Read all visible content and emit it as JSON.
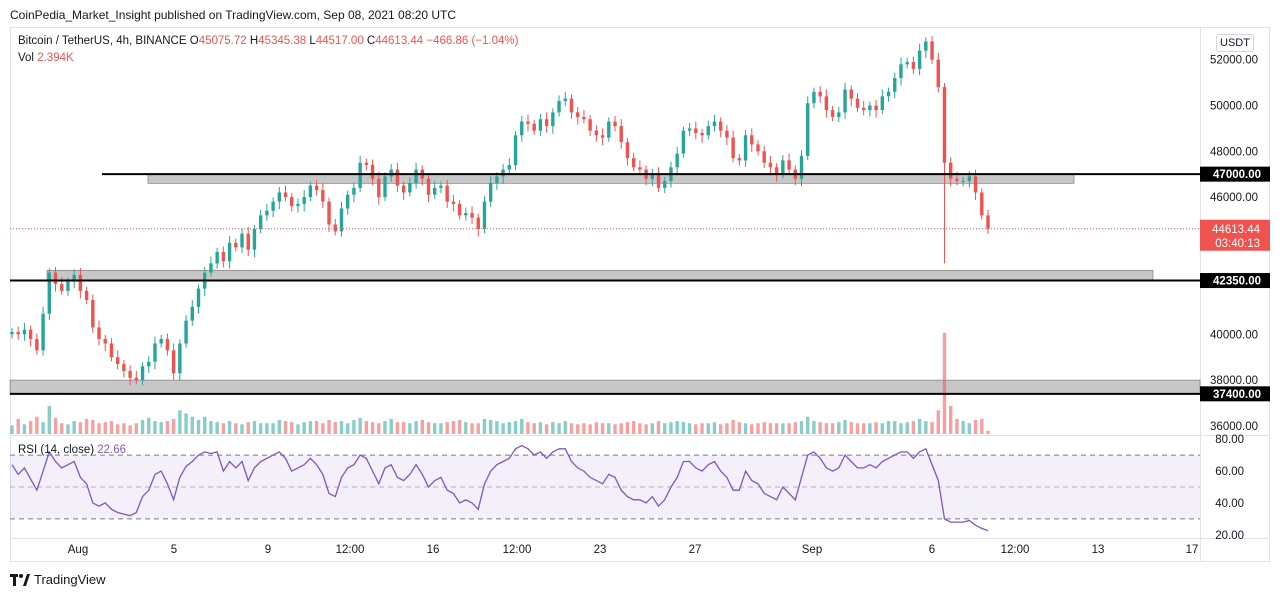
{
  "publisher": "CoinPedia_Market_Insight published on TradingView.com, Sep 08, 2021 08:20 UTC",
  "brand": "TradingView",
  "chart_data": {
    "type": "candlestick",
    "symbol_line": "Bitcoin / TetherUS, 4h, BINANCE",
    "ohlc": {
      "o_label": "O",
      "o": "45075.72",
      "h_label": "H",
      "h": "45345.38",
      "l_label": "L",
      "l": "44517.00",
      "c_label": "C",
      "c": "44613.44",
      "change": "−466.86 (−1.04%)"
    },
    "volume": {
      "label": "Vol",
      "value": "2.394K"
    },
    "currency": "USDT",
    "y_ticks": [
      "52000.00",
      "50000.00",
      "48000.00",
      "46000.00",
      "40000.00",
      "38000.00",
      "36000.00"
    ],
    "y_tick_values": [
      52000,
      50000,
      48000,
      46000,
      40000,
      38000,
      36000
    ],
    "ylim": [
      35600,
      53300
    ],
    "x_ticks": [
      "Aug",
      "5",
      "9",
      "12:00",
      "16",
      "12:00",
      "23",
      "27",
      "Sep",
      "6",
      "12:00",
      "13",
      "17"
    ],
    "levels": [
      {
        "label": "47000.00",
        "value": 47000
      },
      {
        "label": "42350.00",
        "value": 42350
      },
      {
        "label": "37400.00",
        "value": 37400
      }
    ],
    "zones": [
      {
        "from": 46600,
        "to": 47000
      },
      {
        "from": 42350,
        "to": 42800
      },
      {
        "from": 37400,
        "to": 38000
      }
    ],
    "last_price": {
      "label": "44613.44",
      "countdown": "03:40:13",
      "value": 44613
    },
    "closes": [
      40100,
      40000,
      40200,
      39800,
      39300,
      40900,
      42700,
      42200,
      41900,
      42300,
      42600,
      41900,
      41500,
      40300,
      39800,
      39600,
      39000,
      38700,
      38400,
      38100,
      38000,
      38600,
      38800,
      39600,
      39800,
      39300,
      38300,
      39600,
      40600,
      41200,
      42000,
      42700,
      43100,
      43600,
      43200,
      44000,
      43800,
      44400,
      43700,
      44600,
      45200,
      45400,
      45800,
      46200,
      46000,
      45600,
      45700,
      46000,
      46500,
      46300,
      45800,
      44800,
      44500,
      45500,
      46100,
      46400,
      47500,
      47400,
      46800,
      46000,
      46900,
      47200,
      46500,
      46200,
      46600,
      47200,
      46800,
      46100,
      46400,
      46500,
      45800,
      45700,
      45200,
      45300,
      45100,
      44600,
      45800,
      46600,
      46900,
      47200,
      47400,
      48700,
      49300,
      49200,
      48900,
      49400,
      49100,
      49700,
      50200,
      50300,
      49700,
      49500,
      49400,
      48900,
      48700,
      48600,
      49300,
      49100,
      48400,
      47700,
      47300,
      47200,
      46800,
      47000,
      46400,
      46700,
      47300,
      47900,
      48900,
      49000,
      48800,
      48700,
      49100,
      49300,
      48900,
      48600,
      47700,
      47600,
      48700,
      48300,
      48000,
      47500,
      47300,
      47000,
      47600,
      47200,
      46800,
      47800,
      50100,
      50600,
      50400,
      49800,
      49500,
      49700,
      50700,
      50300,
      49900,
      49800,
      50000,
      49800,
      50400,
      50600,
      51200,
      51800,
      51900,
      51600,
      52400,
      52800,
      52000,
      50800,
      47500,
      46800,
      46700,
      46700,
      46900,
      46200,
      45200,
      44613
    ],
    "rsi": {
      "label": "RSI (14, close)",
      "value": "22.66",
      "ylim": [
        18,
        82
      ],
      "ticks": [
        "80.00",
        "60.00",
        "40.00",
        "20.00"
      ],
      "tick_values": [
        80,
        60,
        40,
        20
      ],
      "bands": [
        70,
        30
      ]
    },
    "rsi_values": [
      64,
      58,
      62,
      55,
      48,
      60,
      72,
      66,
      62,
      64,
      66,
      56,
      52,
      40,
      38,
      40,
      36,
      34,
      33,
      32,
      34,
      44,
      48,
      58,
      60,
      52,
      42,
      56,
      63,
      66,
      70,
      72,
      71,
      72,
      60,
      66,
      62,
      66,
      54,
      62,
      66,
      68,
      70,
      72,
      68,
      60,
      62,
      64,
      68,
      64,
      58,
      46,
      44,
      56,
      62,
      64,
      70,
      68,
      60,
      52,
      62,
      64,
      56,
      54,
      58,
      64,
      58,
      50,
      54,
      56,
      48,
      46,
      40,
      42,
      40,
      36,
      52,
      60,
      64,
      66,
      68,
      74,
      76,
      74,
      70,
      72,
      68,
      72,
      74,
      74,
      66,
      62,
      60,
      56,
      54,
      52,
      58,
      56,
      48,
      44,
      42,
      42,
      40,
      44,
      38,
      42,
      50,
      56,
      66,
      66,
      62,
      60,
      64,
      66,
      60,
      56,
      48,
      48,
      60,
      54,
      52,
      46,
      44,
      42,
      50,
      46,
      42,
      56,
      70,
      72,
      68,
      62,
      60,
      62,
      70,
      66,
      62,
      62,
      64,
      62,
      66,
      68,
      70,
      72,
      72,
      68,
      72,
      74,
      64,
      54,
      30,
      28,
      28,
      28,
      29,
      26,
      24,
      22.66
    ],
    "volumes": [
      0.8,
      1.4,
      0.9,
      1.2,
      1.6,
      1.1,
      2.6,
      1.5,
      1.0,
      0.9,
      1.2,
      1.1,
      1.4,
      1.3,
      1.0,
      1.1,
      1.2,
      0.9,
      1.0,
      0.8,
      1.0,
      1.3,
      1.5,
      1.2,
      1.1,
      1.2,
      1.4,
      2.2,
      1.9,
      1.6,
      1.3,
      1.6,
      1.2,
      1.1,
      1.0,
      1.2,
      1.0,
      0.9,
      1.1,
      1.2,
      1.0,
      1.0,
      1.0,
      1.3,
      1.2,
      1.1,
      0.9,
      1.1,
      1.2,
      1.2,
      1.0,
      1.3,
      1.1,
      1.2,
      1.0,
      1.3,
      1.5,
      1.2,
      1.1,
      1.0,
      1.2,
      1.4,
      1.1,
      1.1,
      1.0,
      1.2,
      1.3,
      1.1,
      1.0,
      1.0,
      1.1,
      1.2,
      1.3,
      1.1,
      1.0,
      1.0,
      1.4,
      1.3,
      1.2,
      1.0,
      1.1,
      1.2,
      1.4,
      1.1,
      1.0,
      1.1,
      0.9,
      1.1,
      1.0,
      1.2,
      1.0,
      0.9,
      1.0,
      0.9,
      1.1,
      1.0,
      1.0,
      0.9,
      1.0,
      1.1,
      1.2,
      1.0,
      0.9,
      1.0,
      1.2,
      1.0,
      1.1,
      1.2,
      1.1,
      1.0,
      0.9,
      1.0,
      1.0,
      1.1,
      0.9,
      1.0,
      1.3,
      1.1,
      1.0,
      0.9,
      1.0,
      1.1,
      1.0,
      1.0,
      1.0,
      1.0,
      1.1,
      1.2,
      1.6,
      1.2,
      1.1,
      1.0,
      1.0,
      1.1,
      1.3,
      1.1,
      1.0,
      1.0,
      1.0,
      1.1,
      1.0,
      1.2,
      1.2,
      1.0,
      1.1,
      1.2,
      1.4,
      1.2,
      1.1,
      2.2,
      9.4,
      2.6,
      1.4,
      1.2,
      1.0,
      1.3,
      1.4,
      0.3
    ],
    "colors": {
      "up": "#26a69a",
      "down": "#ef5350",
      "rsi_line": "#7e57c2",
      "rsi_band": "#7e57c2",
      "level": "#000000",
      "zone": "#bdbdbd"
    }
  }
}
